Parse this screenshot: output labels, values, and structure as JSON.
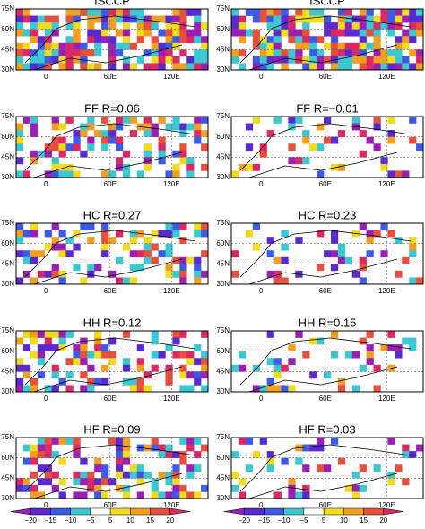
{
  "panels": [
    {
      "title": "ISCCP",
      "lat_labels": [
        "75N",
        "60N",
        "45N",
        "30N"
      ],
      "lon_labels": [
        "0",
        "60E",
        "120E"
      ]
    },
    {
      "title": "ISCCP",
      "lat_labels": [
        "75N",
        "60N",
        "45N",
        "30N"
      ],
      "lon_labels": [
        "0",
        "60E",
        "120E"
      ]
    },
    {
      "title": "FF  R=0.06",
      "lat_labels": [
        "75N",
        "60N",
        "45N",
        "30N"
      ],
      "lon_labels": [
        "0",
        "60E",
        "120E"
      ]
    },
    {
      "title": "FF  R=−0.01",
      "lat_labels": [
        "75N",
        "60N",
        "45N",
        "30N"
      ],
      "lon_labels": [
        "0",
        "60E",
        "120E"
      ]
    },
    {
      "title": "HC  R=0.27",
      "lat_labels": [
        "75N",
        "60N",
        "45N",
        "30N"
      ],
      "lon_labels": [
        "0",
        "60E",
        "120E"
      ]
    },
    {
      "title": "HC  R=0.23",
      "lat_labels": [
        "75N",
        "60N",
        "45N",
        "30N"
      ],
      "lon_labels": [
        "0",
        "60E",
        "120E"
      ]
    },
    {
      "title": "HH  R=0.12",
      "lat_labels": [
        "75N",
        "60N",
        "45N",
        "30N"
      ],
      "lon_labels": [
        "0",
        "60E",
        "120E"
      ]
    },
    {
      "title": "HH  R=0.15",
      "lat_labels": [
        "75N",
        "60N",
        "45N",
        "30N"
      ],
      "lon_labels": [
        "0",
        "60E",
        "120E"
      ]
    },
    {
      "title": "HF  R=0.09",
      "lat_labels": [
        "75N",
        "60N",
        "45N",
        "30N"
      ],
      "lon_labels": [
        "0",
        "60E",
        "120E"
      ]
    },
    {
      "title": "HF  R=0.03",
      "lat_labels": [
        "75N",
        "60N",
        "45N",
        "30N"
      ],
      "lon_labels": [
        "0",
        "60E",
        "120E"
      ]
    }
  ],
  "colorbars": [
    {
      "labels": [
        "−20",
        "−15",
        "−10",
        "−5",
        "5",
        "10",
        "15",
        "20"
      ]
    },
    {
      "labels": [
        "−20",
        "−15",
        "−10",
        "−5",
        "5",
        "10",
        "15",
        "20"
      ]
    }
  ],
  "colors": [
    "#9b1fb4",
    "#5a2ad0",
    "#3c5ae6",
    "#3cc8d2",
    "#ffffff",
    "#f0dc1e",
    "#f0a01e",
    "#e6503c",
    "#dc2864"
  ]
}
